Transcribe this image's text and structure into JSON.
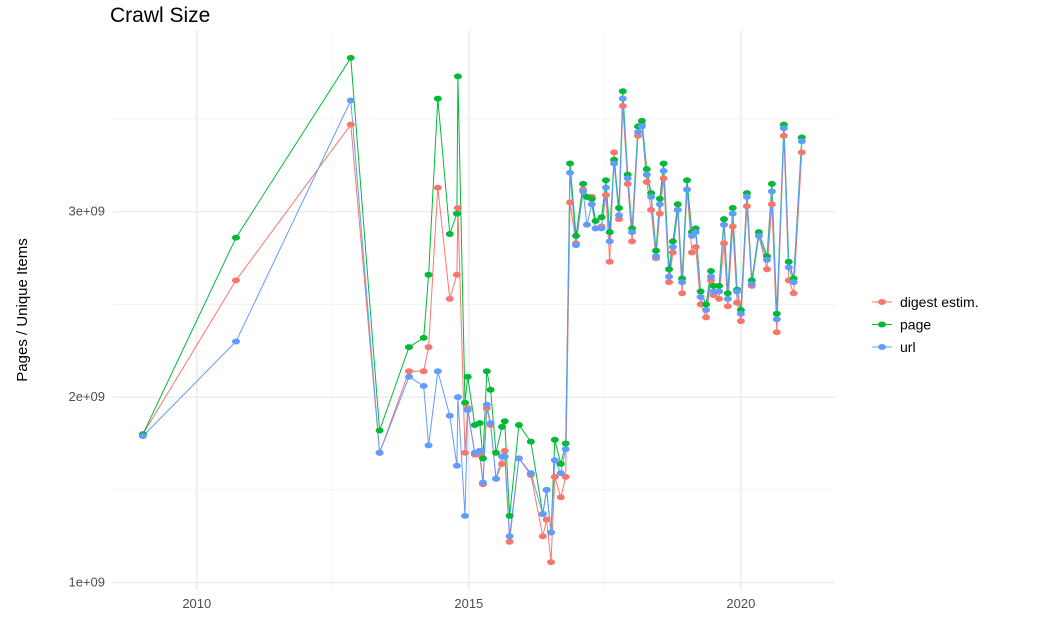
{
  "chart_data": {
    "type": "line",
    "title": "Crawl Size",
    "xlabel": "",
    "ylabel": "Pages / Unique Items",
    "xlim": [
      2008.46,
      2021.73
    ],
    "ylim": [
      960000000.0,
      3980000000.0
    ],
    "x_ticks": [
      2010,
      2015,
      2020
    ],
    "x_tick_labels": [
      "2010",
      "2015",
      "2020"
    ],
    "y_ticks": [
      1000000000.0,
      2000000000.0,
      3000000000.0
    ],
    "y_tick_labels": [
      "1e+09",
      "2e+09",
      "3e+09"
    ],
    "grid": true,
    "markers": true,
    "legend_position": "right",
    "x": [
      2009.01,
      2010.72,
      2012.83,
      2013.36,
      2013.9,
      2014.17,
      2014.26,
      2014.43,
      2014.65,
      2014.78,
      2014.8,
      2014.93,
      2014.98,
      2015.11,
      2015.2,
      2015.26,
      2015.33,
      2015.4,
      2015.5,
      2015.61,
      2015.66,
      2015.75,
      2015.92,
      2016.14,
      2016.36,
      2016.43,
      2016.51,
      2016.58,
      2016.69,
      2016.78,
      2016.86,
      2016.97,
      2017.1,
      2017.17,
      2017.26,
      2017.33,
      2017.44,
      2017.52,
      2017.59,
      2017.67,
      2017.76,
      2017.83,
      2017.92,
      2018.0,
      2018.11,
      2018.18,
      2018.27,
      2018.35,
      2018.44,
      2018.51,
      2018.58,
      2018.68,
      2018.75,
      2018.84,
      2018.92,
      2019.01,
      2019.1,
      2019.17,
      2019.26,
      2019.36,
      2019.45,
      2019.5,
      2019.6,
      2019.69,
      2019.76,
      2019.85,
      2019.93,
      2020.0,
      2020.11,
      2020.2,
      2020.33,
      2020.48,
      2020.57,
      2020.66,
      2020.79,
      2020.88,
      2020.97,
      2021.12
    ],
    "series": [
      {
        "name": "digest estim.",
        "color": "#F8766D",
        "values": [
          1800000000.0,
          2630000000.0,
          3470000000.0,
          1700000000.0,
          2140000000.0,
          2140000000.0,
          2270000000.0,
          3130000000.0,
          2530000000.0,
          2660000000.0,
          3020000000.0,
          1700000000.0,
          1940000000.0,
          1690000000.0,
          1690000000.0,
          1530000000.0,
          1940000000.0,
          1850000000.0,
          1560000000.0,
          1640000000.0,
          1710000000.0,
          1220000000.0,
          1670000000.0,
          1580000000.0,
          1250000000.0,
          1340000000.0,
          1110000000.0,
          1570000000.0,
          1460000000.0,
          1570000000.0,
          3050000000.0,
          2830000000.0,
          3120000000.0,
          3080000000.0,
          3080000000.0,
          2910000000.0,
          2920000000.0,
          3090000000.0,
          2730000000.0,
          3320000000.0,
          2960000000.0,
          3570000000.0,
          3150000000.0,
          2840000000.0,
          3410000000.0,
          3470000000.0,
          3160000000.0,
          3010000000.0,
          2750000000.0,
          2990000000.0,
          3180000000.0,
          2620000000.0,
          2780000000.0,
          3010000000.0,
          2560000000.0,
          3120000000.0,
          2780000000.0,
          2810000000.0,
          2500000000.0,
          2430000000.0,
          2630000000.0,
          2550000000.0,
          2530000000.0,
          2830000000.0,
          2490000000.0,
          2920000000.0,
          2510000000.0,
          2410000000.0,
          3030000000.0,
          2600000000.0,
          2870000000.0,
          2690000000.0,
          3040000000.0,
          2350000000.0,
          3410000000.0,
          2630000000.0,
          2560000000.0,
          3320000000.0
        ]
      },
      {
        "name": "page",
        "color": "#00BA38",
        "values": [
          1800000000.0,
          2860000000.0,
          3830000000.0,
          1820000000.0,
          2270000000.0,
          2320000000.0,
          2660000000.0,
          3610000000.0,
          2880000000.0,
          2990000000.0,
          3730000000.0,
          1970000000.0,
          2110000000.0,
          1850000000.0,
          1860000000.0,
          1670000000.0,
          2140000000.0,
          2040000000.0,
          1700000000.0,
          1840000000.0,
          1870000000.0,
          1360000000.0,
          1850000000.0,
          1760000000.0,
          1370000000.0,
          1500000000.0,
          1270000000.0,
          1770000000.0,
          1640000000.0,
          1750000000.0,
          3260000000.0,
          2870000000.0,
          3150000000.0,
          3080000000.0,
          3070000000.0,
          2950000000.0,
          2970000000.0,
          3170000000.0,
          2890000000.0,
          3280000000.0,
          3020000000.0,
          3650000000.0,
          3200000000.0,
          2910000000.0,
          3460000000.0,
          3490000000.0,
          3230000000.0,
          3100000000.0,
          2790000000.0,
          3070000000.0,
          3260000000.0,
          2690000000.0,
          2840000000.0,
          3040000000.0,
          2640000000.0,
          3170000000.0,
          2890000000.0,
          2910000000.0,
          2570000000.0,
          2500000000.0,
          2680000000.0,
          2600000000.0,
          2600000000.0,
          2960000000.0,
          2560000000.0,
          3020000000.0,
          2580000000.0,
          2470000000.0,
          3100000000.0,
          2630000000.0,
          2890000000.0,
          2760000000.0,
          3150000000.0,
          2450000000.0,
          3470000000.0,
          2730000000.0,
          2640000000.0,
          3400000000.0
        ]
      },
      {
        "name": "url",
        "color": "#619CFF",
        "values": [
          1790000000.0,
          2300000000.0,
          3600000000.0,
          1700000000.0,
          2110000000.0,
          2060000000.0,
          1740000000.0,
          2140000000.0,
          1900000000.0,
          1630000000.0,
          2000000000.0,
          1360000000.0,
          1930000000.0,
          1700000000.0,
          1710000000.0,
          1540000000.0,
          1960000000.0,
          1860000000.0,
          1560000000.0,
          1680000000.0,
          1680000000.0,
          1250000000.0,
          1670000000.0,
          1590000000.0,
          1370000000.0,
          1500000000.0,
          1270000000.0,
          1660000000.0,
          1590000000.0,
          1720000000.0,
          3210000000.0,
          2820000000.0,
          3110000000.0,
          2930000000.0,
          3040000000.0,
          2910000000.0,
          2910000000.0,
          3130000000.0,
          2840000000.0,
          3260000000.0,
          2980000000.0,
          3610000000.0,
          3180000000.0,
          2890000000.0,
          3430000000.0,
          3460000000.0,
          3200000000.0,
          3080000000.0,
          2760000000.0,
          3040000000.0,
          3220000000.0,
          2650000000.0,
          2810000000.0,
          3010000000.0,
          2620000000.0,
          3120000000.0,
          2870000000.0,
          2890000000.0,
          2540000000.0,
          2470000000.0,
          2650000000.0,
          2570000000.0,
          2570000000.0,
          2930000000.0,
          2530000000.0,
          2990000000.0,
          2570000000.0,
          2450000000.0,
          3080000000.0,
          2610000000.0,
          2870000000.0,
          2740000000.0,
          3110000000.0,
          2420000000.0,
          3450000000.0,
          2700000000.0,
          2620000000.0,
          3380000000.0
        ]
      }
    ]
  }
}
